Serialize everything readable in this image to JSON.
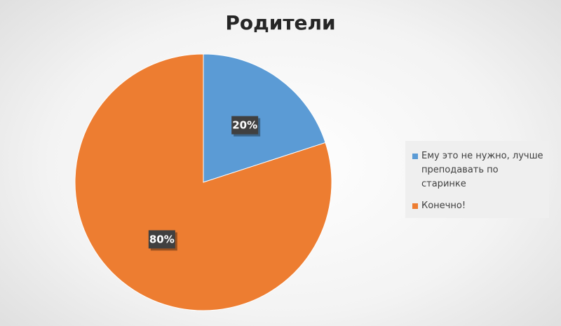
{
  "chart_data": {
    "type": "pie",
    "title": "Родители",
    "categories": [
      "Ему это не нужно, лучше преподавать по старинке",
      "Конечно!"
    ],
    "values": [
      20,
      80
    ],
    "data_labels": [
      "20%",
      "80%"
    ],
    "colors": [
      "#5b9bd5",
      "#ed7d31"
    ],
    "legend_position": "right"
  }
}
